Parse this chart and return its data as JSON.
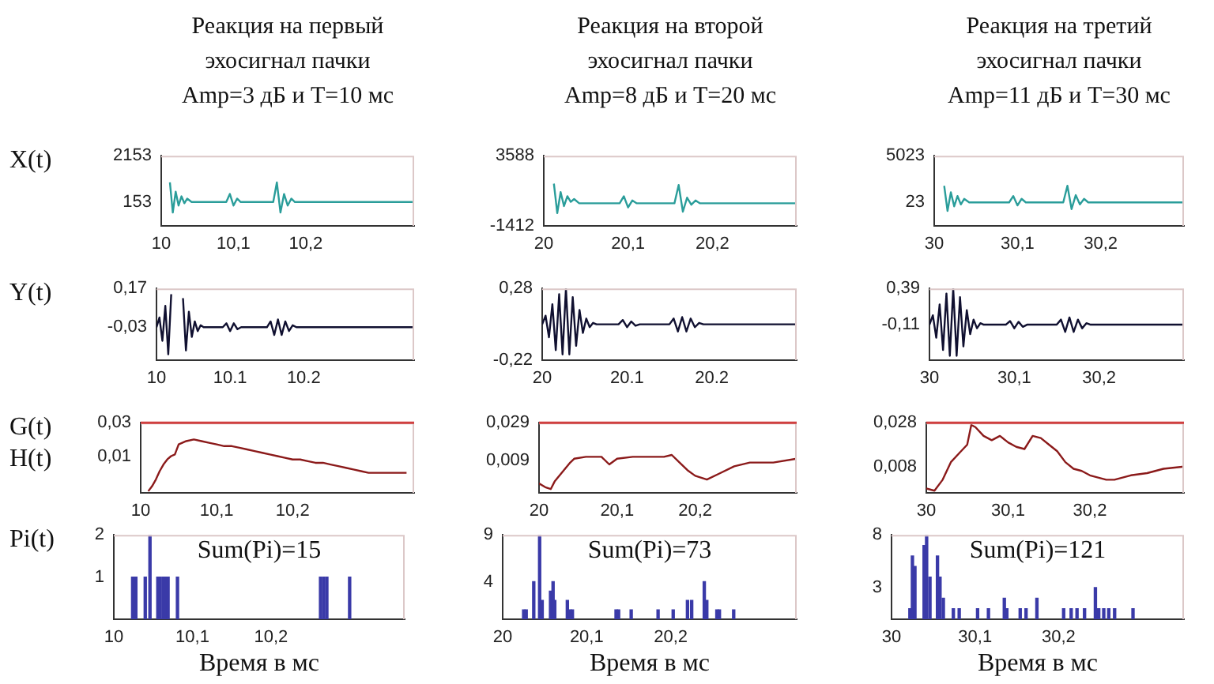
{
  "chart_data": [
    {
      "type": "line",
      "title": "Реакция на первый\nэхосигнал пачки\nAmp=3 дБ и T=10 мс",
      "ylabel": "X(t)",
      "xlim": [
        10,
        10.35
      ],
      "xticks": [
        10,
        {
          "value": 10.1,
          "label": "10,1"
        },
        {
          "value": 10.2,
          "label": "10,2"
        }
      ],
      "ylim": [
        -880,
        2153
      ],
      "yticks": [
        153,
        2153
      ],
      "series": [
        {
          "color": "#2a9d9a",
          "x": [
            10.012,
            10.016,
            10.02,
            10.024,
            10.028,
            10.032,
            10.036,
            10.042,
            10.09,
            10.095,
            10.1,
            10.105,
            10.11,
            10.155,
            10.16,
            10.165,
            10.17,
            10.175,
            10.18,
            10.185,
            10.35
          ],
          "values": [
            1000,
            -300,
            600,
            0,
            400,
            100,
            300,
            153,
            153,
            500,
            0,
            300,
            153,
            153,
            1000,
            -300,
            500,
            0,
            300,
            153,
            153
          ]
        }
      ]
    },
    {
      "type": "line",
      "title": "Реакция на второй\nэхосигнал пачки\nAmp=8 дБ и T=20 мс",
      "xlim": [
        20,
        20.3
      ],
      "xticks": [
        20,
        {
          "value": 20.1,
          "label": "20,1"
        },
        {
          "value": 20.2,
          "label": "20,2"
        }
      ],
      "ylim": [
        -1412,
        3588
      ],
      "yticks": [
        -1412,
        3588
      ],
      "series": [
        {
          "color": "#2a9d9a",
          "x": [
            20.012,
            20.016,
            20.02,
            20.024,
            20.028,
            20.032,
            20.036,
            20.042,
            20.09,
            20.095,
            20.1,
            20.105,
            20.11,
            20.155,
            20.16,
            20.165,
            20.17,
            20.175,
            20.18,
            20.185,
            20.3
          ],
          "values": [
            1600,
            -500,
            1000,
            0,
            700,
            300,
            500,
            200,
            200,
            700,
            -100,
            400,
            200,
            200,
            1500,
            -400,
            600,
            100,
            400,
            200,
            200
          ]
        }
      ]
    },
    {
      "type": "line",
      "title": "Реакция на третий\nэхосигнал пачки\nAmp=11 дБ и T=30 мс",
      "xlim": [
        30,
        30.3
      ],
      "xticks": [
        30,
        {
          "value": 30.1,
          "label": "30,1"
        },
        {
          "value": 30.2,
          "label": "30,2"
        }
      ],
      "ylim": [
        -2500,
        5023
      ],
      "yticks": [
        23,
        5023
      ],
      "series": [
        {
          "color": "#2a9d9a",
          "x": [
            30.012,
            30.016,
            30.02,
            30.024,
            30.028,
            30.032,
            30.036,
            30.042,
            30.09,
            30.095,
            30.1,
            30.105,
            30.11,
            30.155,
            30.16,
            30.165,
            30.17,
            30.175,
            30.18,
            30.185,
            30.3
          ],
          "values": [
            1800,
            -900,
            1100,
            -400,
            700,
            -200,
            400,
            23,
            23,
            700,
            -300,
            400,
            23,
            23,
            1800,
            -700,
            800,
            -200,
            400,
            23,
            23
          ]
        }
      ]
    },
    {
      "type": "line",
      "ylabel": "Y(t)",
      "xlim": [
        10,
        10.35
      ],
      "xticks": [
        10,
        10.1,
        10.2
      ],
      "ylim": [
        -0.2,
        0.17
      ],
      "yticks": [
        {
          "value": -0.03,
          "label": "-0,03"
        },
        {
          "value": 0.17,
          "label": "0,17"
        }
      ],
      "series": [
        {
          "color": "#101030",
          "x": [
            10,
            10.004,
            10.008,
            10.012,
            10.016,
            10.02,
            10.024,
            10.028,
            10.032,
            10.036,
            10.04,
            10.044,
            10.048,
            10.052,
            10.056,
            10.06,
            10.064,
            10.09,
            10.095,
            10.1,
            10.105,
            10.11,
            10.115,
            10.15,
            10.155,
            10.16,
            10.165,
            10.17,
            10.175,
            10.18,
            10.185,
            10.19,
            10.35
          ],
          "values": [
            -0.03,
            0.02,
            -0.1,
            0.08,
            -0.17,
            0.14,
            null,
            null,
            null,
            0.12,
            -0.15,
            0.05,
            -0.08,
            0,
            -0.05,
            -0.02,
            -0.03,
            -0.03,
            -0.01,
            -0.05,
            -0.01,
            -0.04,
            -0.03,
            -0.03,
            0,
            -0.07,
            0.01,
            -0.07,
            0,
            -0.05,
            -0.02,
            -0.03,
            -0.03
          ]
        }
      ]
    },
    {
      "type": "line",
      "xlim": [
        20,
        20.3
      ],
      "xticks": [
        20,
        20.1,
        20.2
      ],
      "ylim": [
        -0.22,
        0.28
      ],
      "yticks": [
        {
          "value": -0.22,
          "label": "-0,22"
        },
        {
          "value": 0.28,
          "label": "0,28"
        }
      ],
      "series": [
        {
          "color": "#101030",
          "x": [
            20,
            20.004,
            20.008,
            20.012,
            20.016,
            20.02,
            20.024,
            20.028,
            20.032,
            20.036,
            20.04,
            20.044,
            20.048,
            20.052,
            20.056,
            20.06,
            20.064,
            20.09,
            20.095,
            20.1,
            20.105,
            20.11,
            20.115,
            20.15,
            20.155,
            20.16,
            20.165,
            20.17,
            20.175,
            20.18,
            20.185,
            20.19,
            20.3
          ],
          "values": [
            0.03,
            0.09,
            -0.06,
            0.17,
            -0.15,
            0.24,
            -0.18,
            0.28,
            -0.18,
            0.22,
            -0.12,
            0.13,
            -0.03,
            0.07,
            0.01,
            0.04,
            0.03,
            0.03,
            0.06,
            0.01,
            0.05,
            0.02,
            0.03,
            0.03,
            0.07,
            -0.02,
            0.08,
            -0.02,
            0.07,
            0.01,
            0.04,
            0.03,
            0.03
          ]
        }
      ]
    },
    {
      "type": "line",
      "xlim": [
        30,
        30.3
      ],
      "xticks": [
        30,
        {
          "value": 30.1,
          "label": "30,1"
        },
        {
          "value": 30.2,
          "label": "30,2"
        }
      ],
      "ylim": [
        -0.6,
        0.39
      ],
      "yticks": [
        {
          "value": -0.11,
          "label": "-0,11"
        },
        {
          "value": 0.39,
          "label": "0,39"
        }
      ],
      "series": [
        {
          "color": "#101030",
          "x": [
            30,
            30.004,
            30.008,
            30.012,
            30.016,
            30.02,
            30.024,
            30.028,
            30.032,
            30.036,
            30.04,
            30.044,
            30.048,
            30.052,
            30.056,
            30.06,
            30.064,
            30.09,
            30.095,
            30.1,
            30.105,
            30.11,
            30.115,
            30.15,
            30.155,
            30.16,
            30.165,
            30.17,
            30.175,
            30.18,
            30.185,
            30.19,
            30.3
          ],
          "values": [
            -0.11,
            0.02,
            -0.29,
            0.17,
            -0.46,
            0.32,
            -0.54,
            0.39,
            -0.54,
            0.27,
            -0.41,
            0.09,
            -0.24,
            -0.04,
            -0.16,
            -0.09,
            -0.11,
            -0.11,
            -0.06,
            -0.16,
            -0.07,
            -0.14,
            -0.11,
            -0.11,
            -0.04,
            -0.21,
            -0.01,
            -0.21,
            -0.04,
            -0.16,
            -0.09,
            -0.11,
            -0.11
          ]
        }
      ]
    },
    {
      "type": "line",
      "ylabel": "G(t)\nH(t)",
      "xlim": [
        10,
        10.36
      ],
      "xticks": [
        10,
        {
          "value": 10.1,
          "label": "10,1"
        },
        {
          "value": 10.2,
          "label": "10,2"
        }
      ],
      "ylim": [
        -0.012,
        0.03
      ],
      "yticks": [
        {
          "value": 0.01,
          "label": "0,01"
        },
        {
          "value": 0.03,
          "label": "0,03"
        }
      ],
      "ref_lines": [
        {
          "axis": "y",
          "value": 0.03,
          "color": "#d04040"
        }
      ],
      "series": [
        {
          "color": "#8b1a1a",
          "x": [
            10.01,
            10.015,
            10.02,
            10.025,
            10.03,
            10.035,
            10.04,
            10.045,
            10.05,
            10.06,
            10.07,
            10.08,
            10.09,
            10.1,
            10.11,
            10.12,
            10.13,
            10.14,
            10.15,
            10.16,
            10.17,
            10.18,
            10.19,
            10.2,
            10.21,
            10.22,
            10.23,
            10.24,
            10.25,
            10.26,
            10.27,
            10.28,
            10.29,
            10.3,
            10.32,
            10.35
          ],
          "values": [
            -0.011,
            -0.008,
            -0.004,
            0.001,
            0.005,
            0.008,
            0.01,
            0.011,
            0.017,
            0.019,
            0.02,
            0.019,
            0.018,
            0.017,
            0.016,
            0.016,
            0.015,
            0.014,
            0.013,
            0.012,
            0.011,
            0.01,
            0.009,
            0.008,
            0.008,
            0.007,
            0.006,
            0.006,
            0.005,
            0.004,
            0.003,
            0.002,
            0.001,
            0,
            0,
            0
          ]
        }
      ]
    },
    {
      "type": "line",
      "xlim": [
        20,
        20.33
      ],
      "xticks": [
        20,
        {
          "value": 20.1,
          "label": "20,1"
        },
        {
          "value": 20.2,
          "label": "20,2"
        }
      ],
      "ylim": [
        -0.008,
        0.029
      ],
      "yticks": [
        {
          "value": 0.009,
          "label": "0,009"
        },
        {
          "value": 0.029,
          "label": "0,029"
        }
      ],
      "ref_lines": [
        {
          "axis": "y",
          "value": 0.029,
          "color": "#d04040"
        }
      ],
      "series": [
        {
          "color": "#8b1a1a",
          "x": [
            20,
            20.008,
            20.015,
            20.02,
            20.03,
            20.04,
            20.045,
            20.06,
            20.08,
            20.09,
            20.1,
            20.12,
            20.14,
            20.16,
            20.17,
            20.18,
            20.19,
            20.2,
            20.215,
            20.23,
            20.25,
            20.27,
            20.3,
            20.33
          ],
          "values": [
            -0.003,
            -0.005,
            -0.006,
            -0.002,
            0.003,
            0.008,
            0.01,
            0.011,
            0.011,
            0.007,
            0.01,
            0.011,
            0.011,
            0.011,
            0.012,
            0.008,
            0.004,
            0.001,
            -0.001,
            0.002,
            0.006,
            0.008,
            0.008,
            0.01
          ]
        }
      ]
    },
    {
      "type": "line",
      "xlim": [
        30,
        30.315
      ],
      "xticks": [
        30,
        {
          "value": 30.1,
          "label": "30,1"
        },
        {
          "value": 30.2,
          "label": "30,2"
        }
      ],
      "ylim": [
        -0.004,
        0.028
      ],
      "yticks": [
        {
          "value": 0.008,
          "label": "0,008"
        },
        {
          "value": 0.028,
          "label": "0,028"
        }
      ],
      "ref_lines": [
        {
          "axis": "y",
          "value": 0.028,
          "color": "#d04040"
        }
      ],
      "series": [
        {
          "color": "#8b1a1a",
          "x": [
            30,
            30.01,
            30.02,
            30.03,
            30.04,
            30.05,
            30.055,
            30.06,
            30.07,
            30.08,
            30.09,
            30.1,
            30.11,
            30.12,
            30.13,
            30.14,
            30.15,
            30.16,
            30.17,
            30.18,
            30.19,
            30.2,
            30.21,
            30.22,
            30.23,
            30.25,
            30.27,
            30.29,
            30.315
          ],
          "values": [
            -0.002,
            -0.003,
            0.002,
            0.01,
            0.014,
            0.018,
            0.027,
            0.026,
            0.022,
            0.02,
            0.022,
            0.019,
            0.017,
            0.016,
            0.022,
            0.021,
            0.018,
            0.015,
            0.01,
            0.007,
            0.006,
            0.004,
            0.003,
            0.002,
            0.002,
            0.004,
            0.005,
            0.007,
            0.008
          ]
        }
      ]
    },
    {
      "type": "bar",
      "ylabel": "Pi(t)",
      "xlabel": "Время в мс",
      "annotations": [
        "Sum(Pi)=15"
      ],
      "xlim": [
        10,
        10.37
      ],
      "xticks": [
        10,
        {
          "value": 10.1,
          "label": "10,1"
        },
        {
          "value": 10.2,
          "label": "10,2"
        }
      ],
      "ylim": [
        0,
        2
      ],
      "yticks": [
        1,
        2
      ],
      "series": [
        {
          "color": "#3a3aa8",
          "x": [
            10.024,
            10.028,
            10.04,
            10.046,
            10.056,
            10.059,
            10.063,
            10.066,
            10.069,
            10.081,
            10.263,
            10.267,
            10.271,
            10.3
          ],
          "values": [
            1,
            1,
            1,
            2,
            1,
            1,
            1,
            1,
            1,
            1,
            1,
            1,
            1,
            1
          ]
        }
      ]
    },
    {
      "type": "bar",
      "xlabel": "Время в мс",
      "annotations": [
        "Sum(Pi)=73"
      ],
      "xlim": [
        20,
        20.35
      ],
      "xticks": [
        20,
        {
          "value": 20.1,
          "label": "20,1"
        },
        {
          "value": 20.2,
          "label": "20,2"
        }
      ],
      "ylim": [
        0,
        9
      ],
      "yticks": [
        4,
        9
      ],
      "series": [
        {
          "color": "#3a3aa8",
          "x": [
            20.025,
            20.028,
            20.037,
            20.044,
            20.047,
            20.057,
            20.06,
            20.062,
            20.077,
            20.08,
            20.083,
            20.135,
            20.138,
            20.153,
            20.185,
            20.203,
            20.22,
            20.225,
            20.24,
            20.243,
            20.255,
            20.258,
            20.275
          ],
          "values": [
            1,
            1,
            4,
            9,
            2,
            3,
            4,
            2,
            2,
            1,
            1,
            1,
            1,
            1,
            1,
            1,
            2,
            2,
            4,
            2,
            1,
            1,
            1
          ]
        }
      ]
    },
    {
      "type": "bar",
      "xlabel": "Время в мс",
      "annotations": [
        "Sum(Pi)=121"
      ],
      "xlim": [
        30,
        30.35
      ],
      "xticks": [
        30,
        {
          "value": 30.1,
          "label": "30,1"
        },
        {
          "value": 30.2,
          "label": "30,2"
        }
      ],
      "ylim": [
        0,
        8
      ],
      "yticks": [
        3,
        8
      ],
      "series": [
        {
          "color": "#3a3aa8",
          "x": [
            30.022,
            30.025,
            30.028,
            30.039,
            30.042,
            30.046,
            30.055,
            30.058,
            30.062,
            30.074,
            30.081,
            30.103,
            30.116,
            30.135,
            30.138,
            30.154,
            30.161,
            30.174,
            30.206,
            30.215,
            30.222,
            30.231,
            30.244,
            30.248,
            30.254,
            30.26,
            30.267,
            30.289
          ],
          "values": [
            1,
            6,
            5,
            7,
            8,
            4,
            6,
            4,
            2,
            1,
            1,
            1,
            1,
            2,
            1,
            1,
            1,
            2,
            1,
            1,
            1,
            1,
            3,
            1,
            1,
            1,
            1,
            1
          ]
        }
      ]
    }
  ]
}
